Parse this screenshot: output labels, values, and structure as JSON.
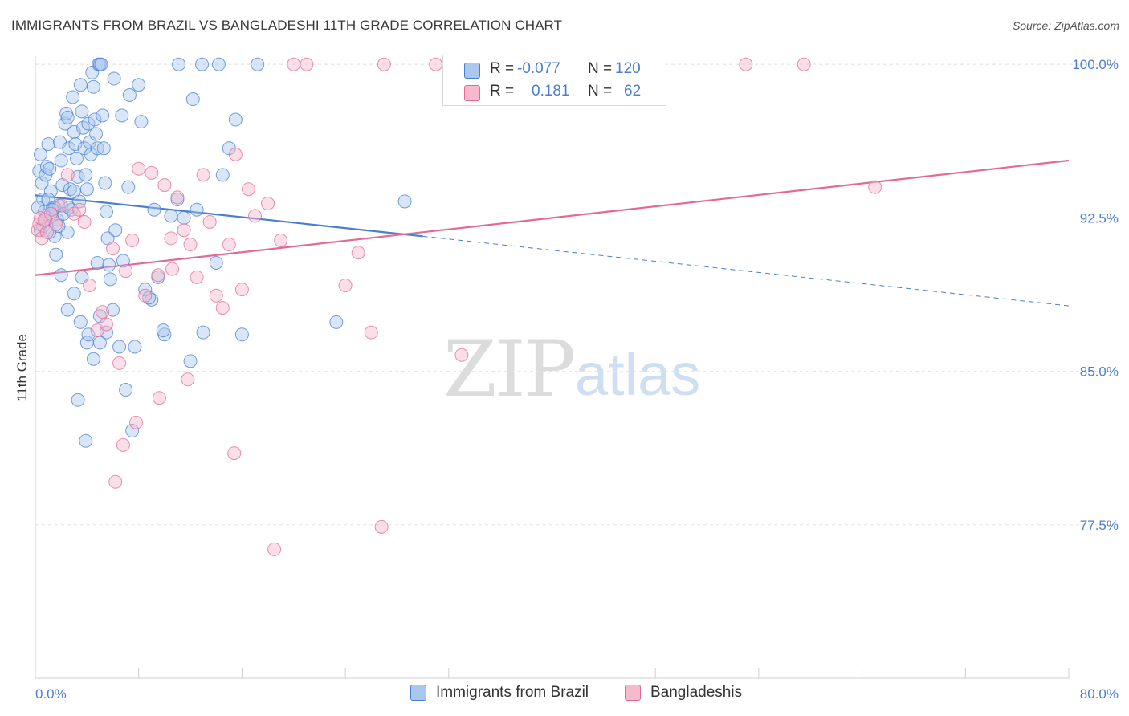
{
  "title": "IMMIGRANTS FROM BRAZIL VS BANGLADESHI 11TH GRADE CORRELATION CHART",
  "source": "Source: ZipAtlas.com",
  "watermark": {
    "zip": "ZIP",
    "atlas": "atlas"
  },
  "colors": {
    "blue": "#4a7fd0",
    "blue_fill": "#a9c7ef",
    "pink": "#e26a95",
    "pink_fill": "#f6b9cd",
    "grid": "#e4e4e4",
    "tick": "#4a7fd0"
  },
  "legend": {
    "rows": [
      {
        "r_label": "R =",
        "r_value": "-0.077",
        "n_label": "N =",
        "n_value": "120",
        "color": "blue"
      },
      {
        "r_label": "R =",
        "r_value": "0.181",
        "n_label": "N =",
        "n_value": "62",
        "color": "pink"
      }
    ]
  },
  "bottom_legend": [
    {
      "label": "Immigrants from Brazil",
      "color": "blue"
    },
    {
      "label": "Bangladeshis",
      "color": "pink"
    }
  ],
  "chart_data": {
    "type": "scatter",
    "title": "IMMIGRANTS FROM BRAZIL VS BANGLADESHI 11TH GRADE CORRELATION CHART",
    "xlabel": "",
    "ylabel": "11th Grade",
    "xlim": [
      0,
      80
    ],
    "ylim": [
      70.0,
      100.4
    ],
    "x_tick_labels": [
      {
        "value": 0,
        "label": "0.0%"
      },
      {
        "value": 80,
        "label": "80.0%"
      }
    ],
    "y_ticks": [
      {
        "value": 100.0,
        "label": "100.0%"
      },
      {
        "value": 92.5,
        "label": "92.5%"
      },
      {
        "value": 85.0,
        "label": "85.0%"
      },
      {
        "value": 77.5,
        "label": "77.5%"
      }
    ],
    "series": [
      {
        "name": "Immigrants from Brazil",
        "color": "blue",
        "trend": {
          "x": [
            0,
            30
          ],
          "y": [
            93.6,
            91.6
          ],
          "dashed_to": [
            80,
            88.2
          ]
        },
        "points": [
          [
            0.3,
            94.8
          ],
          [
            0.4,
            95.6
          ],
          [
            0.5,
            94.2
          ],
          [
            0.6,
            93.4
          ],
          [
            0.7,
            92.8
          ],
          [
            0.8,
            94.6
          ],
          [
            0.9,
            95.0
          ],
          [
            1.0,
            96.1
          ],
          [
            1.1,
            94.9
          ],
          [
            1.2,
            93.8
          ],
          [
            1.3,
            92.6
          ],
          [
            1.4,
            93.0
          ],
          [
            1.5,
            91.6
          ],
          [
            1.6,
            90.7
          ],
          [
            1.7,
            92.4
          ],
          [
            1.8,
            93.1
          ],
          [
            1.9,
            96.2
          ],
          [
            2.0,
            95.3
          ],
          [
            2.1,
            94.1
          ],
          [
            2.2,
            92.7
          ],
          [
            2.3,
            97.1
          ],
          [
            2.4,
            97.6
          ],
          [
            2.5,
            97.4
          ],
          [
            2.6,
            95.9
          ],
          [
            2.7,
            93.9
          ],
          [
            2.8,
            92.9
          ],
          [
            2.9,
            98.4
          ],
          [
            3.0,
            96.7
          ],
          [
            3.1,
            96.1
          ],
          [
            3.2,
            95.4
          ],
          [
            3.3,
            94.5
          ],
          [
            3.4,
            93.3
          ],
          [
            3.5,
            99.0
          ],
          [
            3.6,
            97.7
          ],
          [
            3.7,
            96.9
          ],
          [
            3.8,
            95.9
          ],
          [
            3.9,
            94.6
          ],
          [
            4.0,
            93.9
          ],
          [
            4.1,
            97.1
          ],
          [
            4.2,
            96.2
          ],
          [
            4.3,
            95.6
          ],
          [
            4.4,
            99.6
          ],
          [
            4.5,
            98.9
          ],
          [
            4.6,
            97.3
          ],
          [
            4.7,
            96.6
          ],
          [
            4.8,
            95.9
          ],
          [
            4.9,
            100.0
          ],
          [
            5.0,
            100.0
          ],
          [
            5.1,
            100.0
          ],
          [
            5.2,
            97.5
          ],
          [
            5.3,
            95.9
          ],
          [
            5.4,
            94.2
          ],
          [
            5.5,
            92.8
          ],
          [
            5.6,
            91.5
          ],
          [
            5.7,
            90.2
          ],
          [
            5.8,
            89.5
          ],
          [
            1.0,
            93.4
          ],
          [
            1.5,
            93.0
          ],
          [
            2.0,
            89.7
          ],
          [
            2.5,
            88.0
          ],
          [
            3.0,
            88.8
          ],
          [
            3.5,
            87.4
          ],
          [
            4.0,
            86.4
          ],
          [
            4.5,
            85.6
          ],
          [
            5.0,
            87.7
          ],
          [
            5.5,
            86.9
          ],
          [
            6.0,
            88.0
          ],
          [
            6.5,
            86.2
          ],
          [
            7.0,
            84.1
          ],
          [
            7.5,
            82.1
          ],
          [
            8.5,
            89.0
          ],
          [
            9.0,
            88.5
          ],
          [
            9.5,
            89.6
          ],
          [
            10.0,
            86.8
          ],
          [
            11.0,
            93.4
          ],
          [
            11.5,
            92.5
          ],
          [
            12.0,
            85.5
          ],
          [
            12.5,
            92.9
          ],
          [
            13.0,
            86.9
          ],
          [
            14.0,
            90.3
          ],
          [
            14.5,
            94.6
          ],
          [
            15.0,
            95.9
          ],
          [
            15.5,
            97.3
          ],
          [
            16.0,
            86.8
          ],
          [
            3.3,
            83.6
          ],
          [
            3.9,
            81.6
          ],
          [
            2.5,
            91.8
          ],
          [
            3.0,
            93.8
          ],
          [
            4.8,
            90.3
          ],
          [
            6.2,
            91.9
          ],
          [
            6.8,
            90.4
          ],
          [
            7.2,
            94.0
          ],
          [
            8.0,
            99.0
          ],
          [
            8.8,
            88.6
          ],
          [
            9.2,
            92.9
          ],
          [
            10.5,
            92.6
          ],
          [
            12.2,
            98.3
          ],
          [
            12.9,
            100.0
          ],
          [
            14.2,
            100.0
          ],
          [
            17.2,
            100.0
          ],
          [
            11.1,
            100.0
          ],
          [
            6.1,
            99.3
          ],
          [
            7.3,
            98.5
          ],
          [
            8.2,
            97.2
          ],
          [
            6.7,
            97.5
          ],
          [
            4.1,
            86.8
          ],
          [
            3.6,
            89.6
          ],
          [
            5.0,
            86.4
          ],
          [
            7.7,
            86.2
          ],
          [
            9.9,
            87.0
          ],
          [
            28.6,
            93.3
          ],
          [
            23.3,
            87.4
          ],
          [
            0.2,
            93.0
          ],
          [
            0.4,
            91.9
          ],
          [
            0.6,
            92.1
          ],
          [
            0.8,
            92.4
          ],
          [
            1.1,
            91.8
          ],
          [
            1.3,
            92.9
          ],
          [
            1.8,
            92.1
          ],
          [
            2.6,
            93.0
          ]
        ]
      },
      {
        "name": "Bangladeshis",
        "color": "pink",
        "trend": {
          "x": [
            0,
            80
          ],
          "y": [
            89.7,
            95.3
          ]
        },
        "points": [
          [
            0.2,
            91.9
          ],
          [
            0.3,
            92.2
          ],
          [
            0.4,
            92.5
          ],
          [
            0.5,
            91.5
          ],
          [
            0.7,
            92.4
          ],
          [
            0.9,
            91.8
          ],
          [
            1.2,
            92.7
          ],
          [
            1.6,
            92.2
          ],
          [
            2.0,
            93.1
          ],
          [
            2.5,
            94.6
          ],
          [
            3.0,
            92.7
          ],
          [
            3.4,
            92.9
          ],
          [
            3.8,
            92.3
          ],
          [
            4.2,
            89.2
          ],
          [
            4.8,
            87.0
          ],
          [
            5.2,
            87.9
          ],
          [
            5.5,
            87.3
          ],
          [
            6.0,
            91.0
          ],
          [
            6.5,
            85.4
          ],
          [
            7.0,
            89.9
          ],
          [
            7.5,
            91.4
          ],
          [
            8.0,
            94.9
          ],
          [
            8.5,
            88.7
          ],
          [
            9.0,
            94.7
          ],
          [
            9.5,
            89.7
          ],
          [
            10.0,
            94.1
          ],
          [
            10.5,
            91.5
          ],
          [
            11.0,
            93.5
          ],
          [
            11.5,
            91.9
          ],
          [
            12.0,
            91.2
          ],
          [
            12.5,
            89.6
          ],
          [
            13.0,
            94.6
          ],
          [
            13.5,
            92.3
          ],
          [
            14.0,
            88.7
          ],
          [
            14.5,
            88.1
          ],
          [
            15.0,
            91.2
          ],
          [
            15.5,
            95.6
          ],
          [
            16.0,
            89.0
          ],
          [
            16.5,
            93.9
          ],
          [
            17.0,
            92.6
          ],
          [
            18.0,
            93.2
          ],
          [
            19.0,
            91.4
          ],
          [
            20.0,
            100.0
          ],
          [
            21.0,
            100.0
          ],
          [
            24.0,
            89.2
          ],
          [
            25.0,
            90.8
          ],
          [
            26.0,
            86.9
          ],
          [
            27.0,
            100.0
          ],
          [
            31.0,
            100.0
          ],
          [
            33.0,
            85.8
          ],
          [
            55.0,
            100.0
          ],
          [
            59.5,
            100.0
          ],
          [
            65.0,
            94.0
          ],
          [
            10.6,
            90.0
          ],
          [
            7.8,
            82.5
          ],
          [
            9.6,
            83.7
          ],
          [
            11.8,
            84.6
          ],
          [
            6.2,
            79.6
          ],
          [
            6.8,
            81.4
          ],
          [
            18.5,
            76.3
          ],
          [
            26.8,
            77.4
          ],
          [
            15.4,
            81.0
          ]
        ]
      }
    ]
  }
}
